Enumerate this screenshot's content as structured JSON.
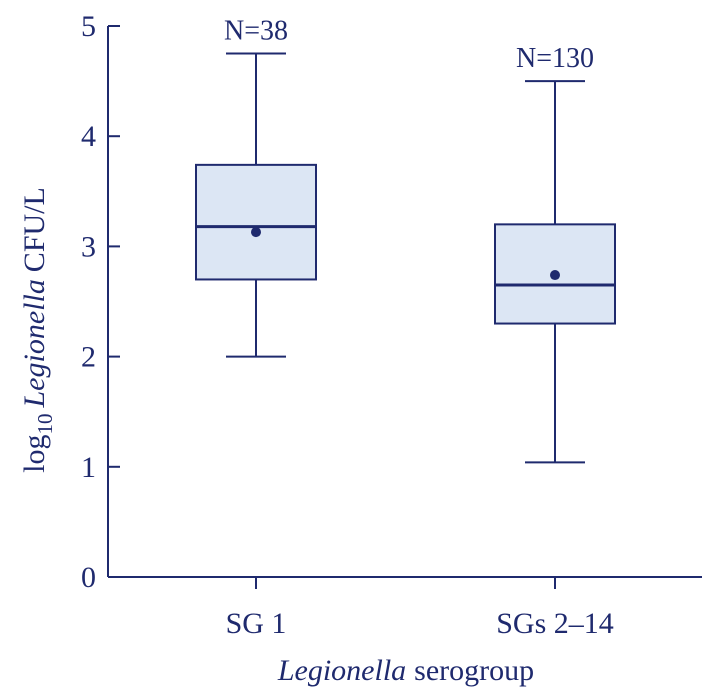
{
  "chart_data": {
    "type": "box",
    "ylabel": {
      "prefix": "log",
      "subscript": "10",
      "italic": "Legionella",
      "suffix": "CFU/L"
    },
    "xlabel": {
      "italic": "Legionella",
      "suffix": "serogroup"
    },
    "ylim": [
      0,
      5
    ],
    "yticks": [
      "0",
      "1",
      "2",
      "3",
      "4",
      "5"
    ],
    "categories": [
      "SG 1",
      "SGs 2–14"
    ],
    "boxes": [
      {
        "category": "SG 1",
        "n_label": "N=38",
        "whisker_low": 2.0,
        "q1": 2.7,
        "median": 3.18,
        "q3": 3.74,
        "whisker_high": 4.75,
        "mean": 3.13
      },
      {
        "category": "SGs 2–14",
        "n_label": "N=130",
        "whisker_low": 1.04,
        "q1": 2.3,
        "median": 2.65,
        "q3": 3.2,
        "whisker_high": 4.5,
        "mean": 2.74
      }
    ],
    "grid": false,
    "colors": {
      "stroke": "#1f2a6e",
      "box_fill": "#dce6f4"
    }
  }
}
